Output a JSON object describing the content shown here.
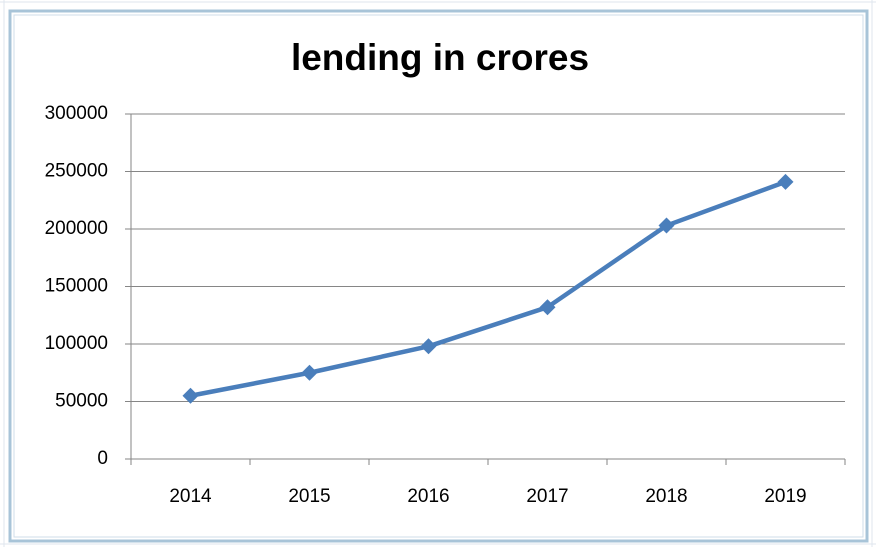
{
  "chart_data": {
    "type": "line",
    "title": "lending in crores",
    "categories": [
      "2014",
      "2015",
      "2016",
      "2017",
      "2018",
      "2019"
    ],
    "values": [
      55000,
      75000,
      98000,
      132000,
      203000,
      241000
    ],
    "color": "#4a7ebb",
    "marker": "diamond",
    "ylim": [
      0,
      300000
    ],
    "yticks": [
      0,
      50000,
      100000,
      150000,
      200000,
      250000,
      300000
    ],
    "grid": true
  }
}
